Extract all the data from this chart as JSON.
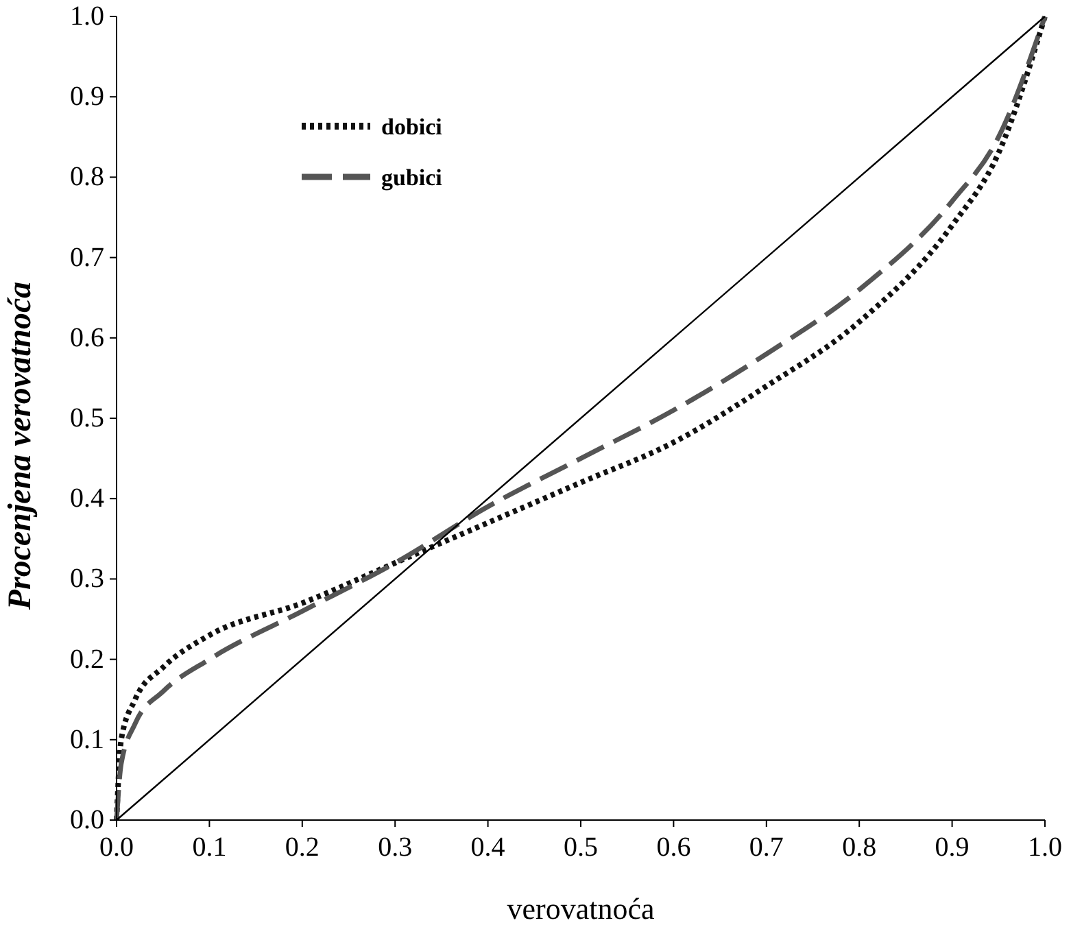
{
  "chart_data": {
    "type": "line",
    "xlabel": "verovatnoća",
    "ylabel": "Procenjena verovatnoća",
    "xlim": [
      0,
      1
    ],
    "ylim": [
      0,
      1
    ],
    "xticks": [
      {
        "value": 0,
        "label": "0.0"
      },
      0.1,
      0.2,
      0.3,
      0.4,
      0.5,
      0.6,
      0.7,
      0.8,
      0.9,
      {
        "value": 1,
        "label": "1.0"
      }
    ],
    "yticks": [
      {
        "value": 0,
        "label": "0.0"
      },
      0.1,
      0.2,
      0.3,
      0.4,
      0.5,
      0.6,
      0.7,
      0.8,
      0.9,
      {
        "value": 1,
        "label": "1.0"
      }
    ],
    "grid": false,
    "legend": "top left",
    "marker": "none",
    "series": [
      {
        "name": "dobici",
        "color": "#111111",
        "line_style": "dotted",
        "x": [
          0,
          0.005,
          0.02,
          0.05,
          0.1,
          0.2,
          0.3,
          0.4,
          0.5,
          0.6,
          0.7,
          0.8,
          0.9,
          0.95,
          1
        ],
        "values": [
          0,
          0.1,
          0.15,
          0.19,
          0.23,
          0.27,
          0.32,
          0.37,
          0.42,
          0.47,
          0.54,
          0.62,
          0.74,
          0.83,
          1
        ]
      },
      {
        "name": "gubici",
        "color": "#555555",
        "line_style": "dashed",
        "x": [
          0,
          0.005,
          0.02,
          0.05,
          0.1,
          0.2,
          0.3,
          0.4,
          0.5,
          0.6,
          0.7,
          0.8,
          0.9,
          0.95,
          1
        ],
        "values": [
          0,
          0.07,
          0.12,
          0.16,
          0.2,
          0.26,
          0.32,
          0.39,
          0.45,
          0.51,
          0.58,
          0.66,
          0.77,
          0.85,
          1
        ]
      },
      {
        "color": "#000000",
        "line_style": "solid",
        "x": [
          0,
          1
        ],
        "values": [
          0,
          1
        ]
      }
    ]
  }
}
